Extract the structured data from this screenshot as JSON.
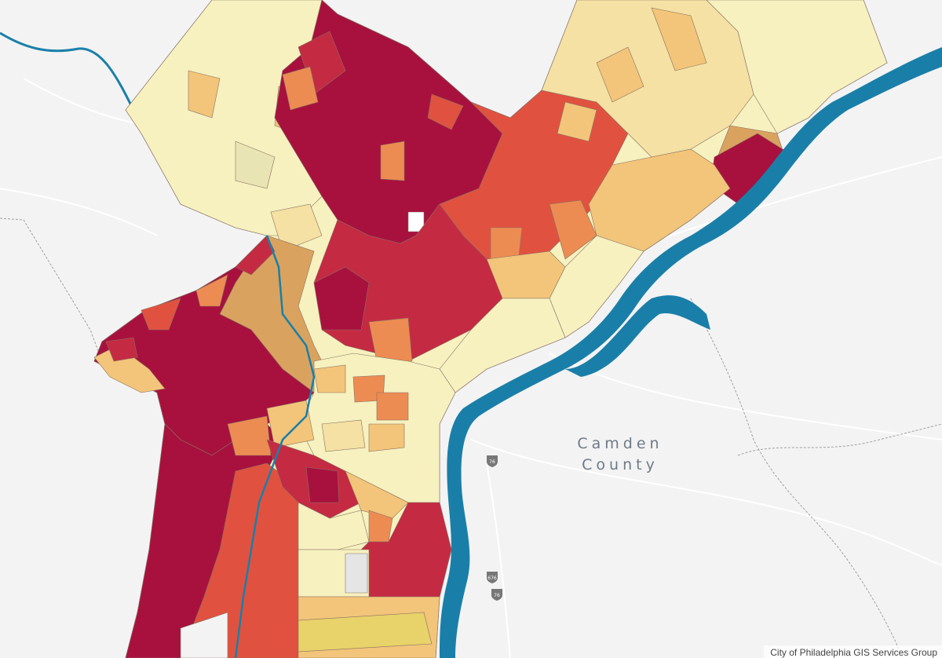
{
  "map": {
    "place_label_line1": "Camden",
    "place_label_line2": "County",
    "attribution": "City of Philadelphia GIS Services Group",
    "shields": [
      "76",
      "676",
      "76"
    ],
    "palette": {
      "river": "#1a7fa8",
      "water_outline": "#1778a0",
      "basemap": "#f3f3f4",
      "lightest": "#f6f1bf",
      "light": "#f4e1a3",
      "mid_light": "#f2c57a",
      "mid": "#ec8c52",
      "mid_dark": "#e0523f",
      "dark": "#c52a43",
      "darkest": "#a8113e",
      "tan": "#d9a35f"
    }
  }
}
